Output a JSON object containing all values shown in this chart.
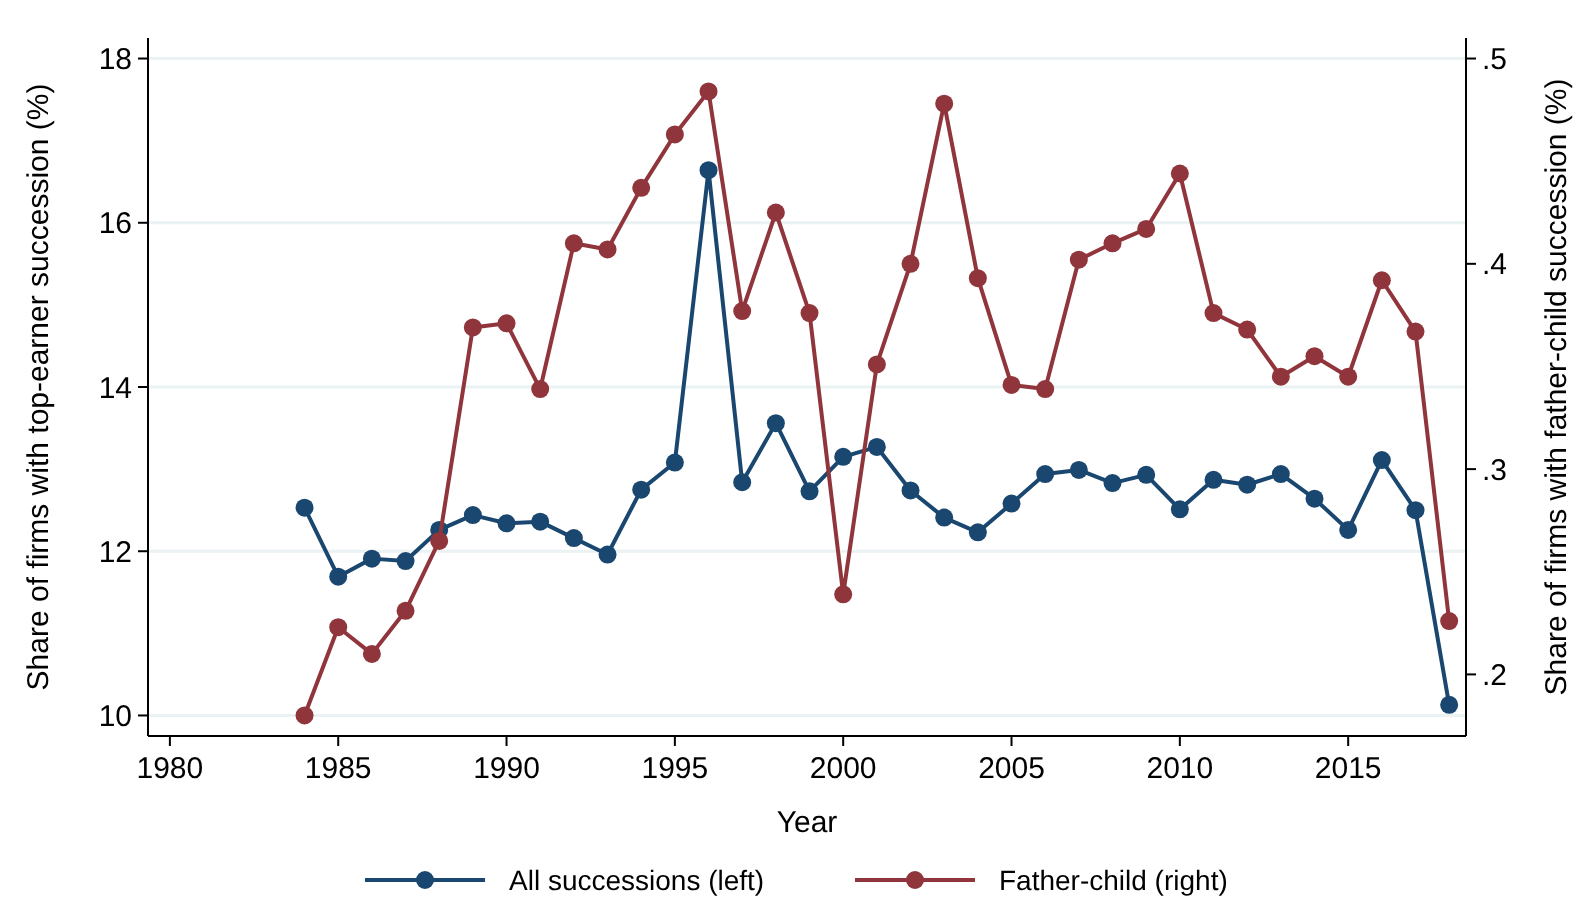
{
  "chart_data": {
    "type": "line",
    "xlabel": "Year",
    "ylabel": "Share of firms with top-earner succession (%)",
    "y2label": "Share of firms with father-child succession (%)",
    "x": [
      1984,
      1985,
      1986,
      1987,
      1988,
      1989,
      1990,
      1991,
      1992,
      1993,
      1994,
      1995,
      1996,
      1997,
      1998,
      1999,
      2000,
      2001,
      2002,
      2003,
      2004,
      2005,
      2006,
      2007,
      2008,
      2009,
      2010,
      2011,
      2012,
      2013,
      2014,
      2015,
      2016,
      2017,
      2018
    ],
    "series": [
      {
        "name": "All successions (left)",
        "color": "#1a476f",
        "values": [
          12.53,
          11.69,
          11.91,
          11.88,
          12.26,
          12.44,
          12.34,
          12.36,
          12.16,
          11.96,
          12.75,
          13.08,
          16.64,
          12.84,
          13.56,
          12.73,
          13.15,
          13.27,
          12.74,
          12.41,
          12.23,
          12.58,
          12.94,
          12.99,
          12.83,
          12.93,
          12.51,
          12.87,
          12.81,
          12.94,
          12.64,
          12.26,
          13.11,
          12.5,
          10.13
        ]
      },
      {
        "name": "Father-child (right)",
        "color": "#90353b",
        "axis": "y2",
        "values": [
          0.18,
          0.223,
          0.21,
          0.231,
          0.265,
          0.369,
          0.371,
          0.339,
          0.41,
          0.407,
          0.437,
          0.463,
          0.484,
          0.377,
          0.425,
          0.376,
          0.239,
          0.351,
          0.4,
          0.478,
          0.393,
          0.341,
          0.339,
          0.402,
          0.41,
          0.417,
          0.444,
          0.376,
          0.368,
          0.345,
          0.355,
          0.345,
          0.392,
          0.367,
          0.226
        ]
      }
    ],
    "xlim": [
      1979.35,
      2018.5
    ],
    "xticks": [
      1980,
      1985,
      1990,
      1995,
      2000,
      2005,
      2010,
      2015
    ],
    "ylim": [
      9.75,
      18.25
    ],
    "yticks": [
      10,
      12,
      14,
      16,
      18
    ],
    "y2lim": [
      0.17,
      0.51
    ],
    "y2ticks": [
      {
        "value": 0.2,
        "label": ".2"
      },
      {
        "value": 0.3,
        "label": ".3"
      },
      {
        "value": 0.4,
        "label": ".4"
      },
      {
        "value": 0.5,
        "label": ".5"
      }
    ],
    "grid": "y",
    "legend": "bottom",
    "marker": "circle",
    "line_style": "solid"
  }
}
